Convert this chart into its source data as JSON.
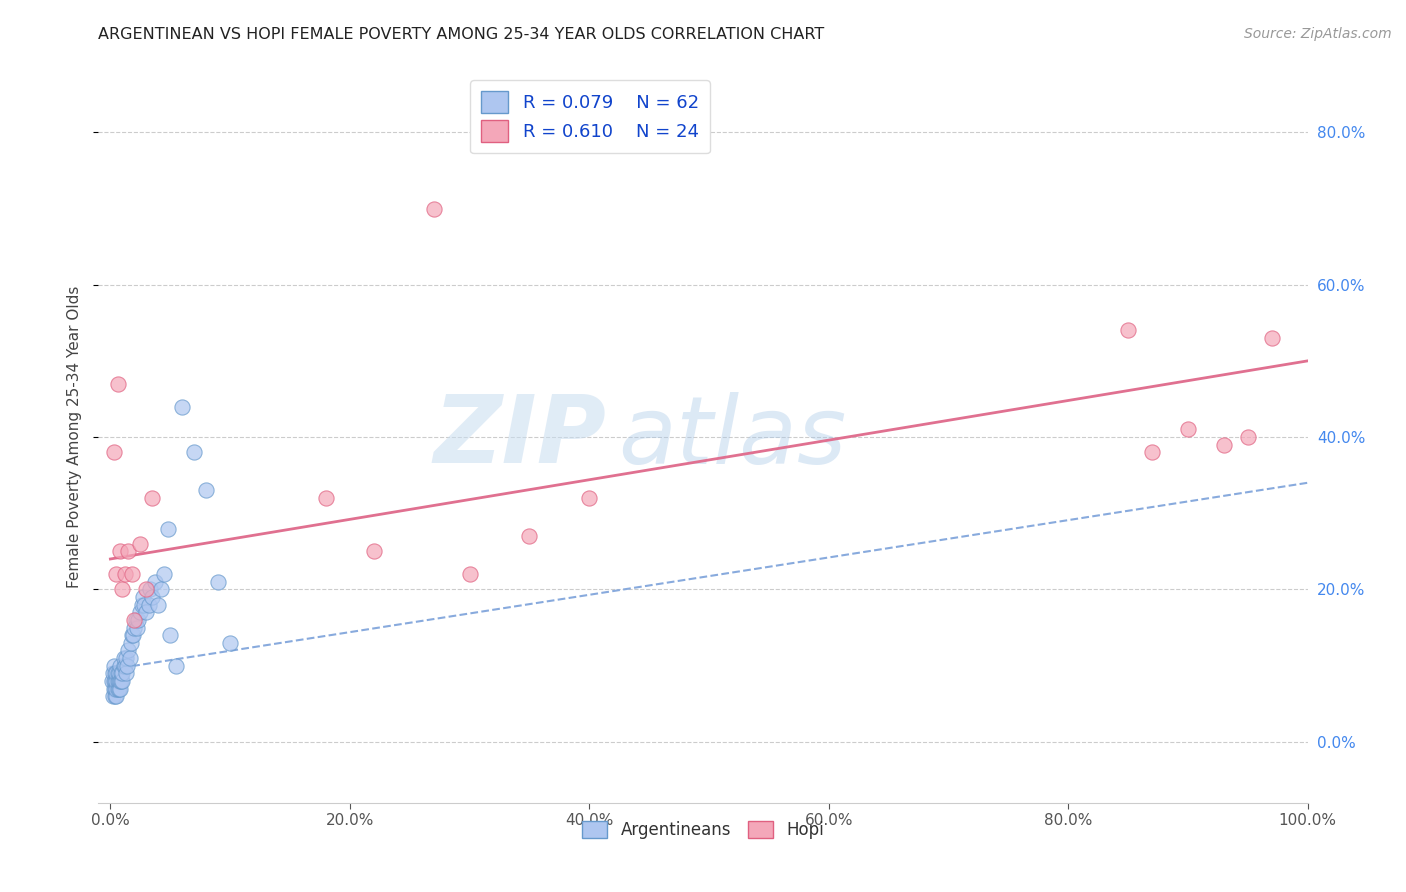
{
  "title": "ARGENTINEAN VS HOPI FEMALE POVERTY AMONG 25-34 YEAR OLDS CORRELATION CHART",
  "source": "Source: ZipAtlas.com",
  "ylabel": "Female Poverty Among 25-34 Year Olds",
  "xlim": [
    -0.01,
    1.0
  ],
  "ylim": [
    -0.08,
    0.88
  ],
  "xticks": [
    0.0,
    0.2,
    0.4,
    0.6,
    0.8,
    1.0
  ],
  "xticklabels": [
    "0.0%",
    "20.0%",
    "40.0%",
    "60.0%",
    "80.0%",
    "100.0%"
  ],
  "ytick_positions": [
    0.0,
    0.2,
    0.4,
    0.6,
    0.8
  ],
  "yticklabels_right": [
    "0.0%",
    "20.0%",
    "40.0%",
    "60.0%",
    "80.0%"
  ],
  "legend_r_argentinean": "R = 0.079",
  "legend_n_argentinean": "N = 62",
  "legend_r_hopi": "R = 0.610",
  "legend_n_hopi": "N = 24",
  "argentinean_color": "#aec6f0",
  "hopi_color": "#f4a7b9",
  "argentinean_edge_color": "#6699cc",
  "hopi_edge_color": "#e06080",
  "argentinean_line_color": "#88aadd",
  "hopi_line_color": "#e07090",
  "watermark_zip": "ZIP",
  "watermark_atlas": "atlas",
  "background_color": "#ffffff",
  "argentinean_x": [
    0.001,
    0.002,
    0.002,
    0.003,
    0.003,
    0.003,
    0.004,
    0.004,
    0.004,
    0.004,
    0.005,
    0.005,
    0.005,
    0.005,
    0.006,
    0.006,
    0.006,
    0.007,
    0.007,
    0.007,
    0.008,
    0.008,
    0.008,
    0.009,
    0.009,
    0.01,
    0.01,
    0.011,
    0.011,
    0.012,
    0.013,
    0.013,
    0.014,
    0.015,
    0.016,
    0.017,
    0.018,
    0.019,
    0.02,
    0.021,
    0.022,
    0.023,
    0.025,
    0.026,
    0.027,
    0.028,
    0.03,
    0.032,
    0.033,
    0.035,
    0.037,
    0.04,
    0.042,
    0.045,
    0.048,
    0.05,
    0.055,
    0.06,
    0.07,
    0.08,
    0.09,
    0.1
  ],
  "argentinean_y": [
    0.08,
    0.06,
    0.09,
    0.07,
    0.08,
    0.1,
    0.06,
    0.07,
    0.08,
    0.09,
    0.06,
    0.07,
    0.08,
    0.09,
    0.07,
    0.08,
    0.09,
    0.07,
    0.08,
    0.09,
    0.07,
    0.08,
    0.1,
    0.08,
    0.09,
    0.08,
    0.09,
    0.1,
    0.11,
    0.1,
    0.09,
    0.11,
    0.1,
    0.12,
    0.11,
    0.13,
    0.14,
    0.14,
    0.15,
    0.16,
    0.15,
    0.16,
    0.17,
    0.18,
    0.19,
    0.18,
    0.17,
    0.18,
    0.2,
    0.19,
    0.21,
    0.18,
    0.2,
    0.22,
    0.28,
    0.14,
    0.1,
    0.44,
    0.38,
    0.33,
    0.21,
    0.13
  ],
  "hopi_x": [
    0.003,
    0.005,
    0.006,
    0.008,
    0.01,
    0.012,
    0.015,
    0.018,
    0.02,
    0.025,
    0.03,
    0.035,
    0.18,
    0.22,
    0.27,
    0.3,
    0.35,
    0.4,
    0.85,
    0.87,
    0.9,
    0.93,
    0.95,
    0.97
  ],
  "hopi_y": [
    0.38,
    0.22,
    0.47,
    0.25,
    0.2,
    0.22,
    0.25,
    0.22,
    0.16,
    0.26,
    0.2,
    0.32,
    0.32,
    0.25,
    0.7,
    0.22,
    0.27,
    0.32,
    0.54,
    0.38,
    0.41,
    0.39,
    0.4,
    0.53
  ],
  "arg_trendline_x0": 0.0,
  "arg_trendline_x1": 1.0,
  "arg_trendline_y0": 0.095,
  "arg_trendline_y1": 0.34,
  "hopi_trendline_x0": 0.0,
  "hopi_trendline_x1": 1.0,
  "hopi_trendline_y0": 0.24,
  "hopi_trendline_y1": 0.5
}
